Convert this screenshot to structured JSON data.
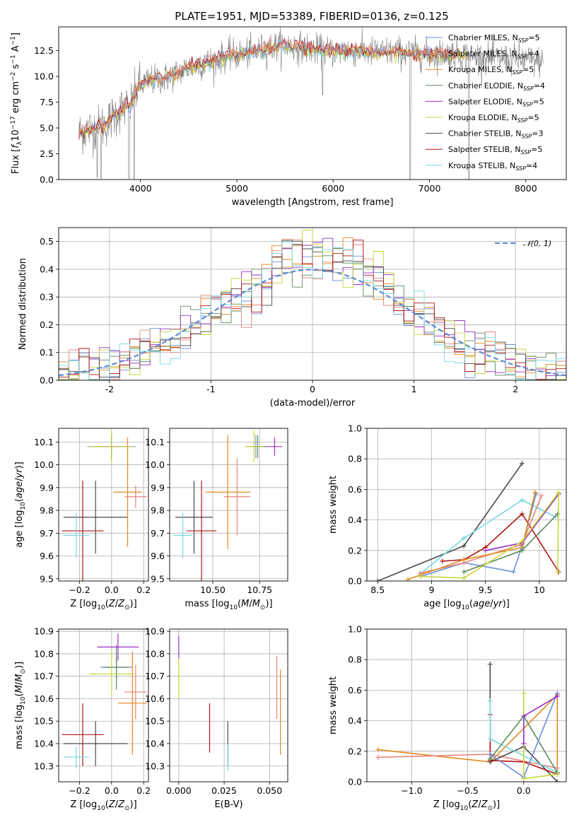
{
  "figure_title": "PLATE=1951, MJD=53389, FIBERID=0136, z=0.125",
  "legend_entries": [
    {
      "name": "Chabrier MILES, N$_{SSP}$=5",
      "label": "Chabrier MILES, N",
      "sub": "SSP",
      "rest": "=5",
      "color": "#6a8fd8"
    },
    {
      "name": "Salpeter MILES, N$_{SSP}$=4",
      "label": "Salpeter MILES, N",
      "sub": "SSP",
      "rest": "=4",
      "color": "#e9857d"
    },
    {
      "name": "Kroupa MILES, N$_{SSP}$=5",
      "label": "Kroupa MILES, N",
      "sub": "SSP",
      "rest": "=5",
      "color": "#e08a1e"
    },
    {
      "name": "Chabrier ELODIE, N$_{SSP}$=4",
      "label": "Chabrier ELODIE, N",
      "sub": "SSP",
      "rest": "=4",
      "color": "#5c8a5c"
    },
    {
      "name": "Salpeter ELODIE, N$_{SSP}$=5",
      "label": "Salpeter ELODIE, N",
      "sub": "SSP",
      "rest": "=5",
      "color": "#9b30c8"
    },
    {
      "name": "Kroupa ELODIE, N$_{SSP}$=5",
      "label": "Kroupa ELODIE, N",
      "sub": "SSP",
      "rest": "=5",
      "color": "#c9d63a"
    },
    {
      "name": "Chabrier STELIB, N$_{SSP}$=3",
      "label": "Chabrier STELIB, N",
      "sub": "SSP",
      "rest": "=3",
      "color": "#4a4a4a"
    },
    {
      "name": "Salpeter STELIB, N$_{SSP}$=5",
      "label": "Salpeter STELIB, N",
      "sub": "SSP",
      "rest": "=5",
      "color": "#b01515"
    },
    {
      "name": "Kroupa STELIB, N$_{SSP}$=4",
      "label": "Kroupa STELIB, N",
      "sub": "SSP",
      "rest": "=4",
      "color": "#78d8e0"
    }
  ],
  "chart_data": [
    {
      "id": "spectrum",
      "type": "line",
      "title": "PLATE=1951, MJD=53389, FIBERID=0136, z=0.125",
      "xlabel": "wavelength [Angstrom, rest frame]",
      "ylabel_text": "Flux [f",
      "ylabel_full": "Flux [f_λ 10^-17 erg cm^-2 s^-1 A^-1]",
      "xlim": [
        3150,
        8420
      ],
      "ylim": [
        0,
        14.8
      ],
      "xticks": [
        4000,
        5000,
        6000,
        7000,
        8000
      ],
      "yticks": [
        0.0,
        2.5,
        5.0,
        7.5,
        10.0,
        12.5
      ],
      "grid": false,
      "legend_position": "top-right",
      "continuum": [
        [
          3350,
          4.5
        ],
        [
          3450,
          4.8
        ],
        [
          3550,
          5.0
        ],
        [
          3650,
          5.4
        ],
        [
          3700,
          6.0
        ],
        [
          3800,
          6.8
        ],
        [
          3900,
          7.3
        ],
        [
          3980,
          9.1
        ],
        [
          4100,
          9.6
        ],
        [
          4250,
          9.8
        ],
        [
          4400,
          10.4
        ],
        [
          4500,
          10.9
        ],
        [
          4600,
          11.1
        ],
        [
          4750,
          11.5
        ],
        [
          4900,
          12.0
        ],
        [
          5000,
          12.1
        ],
        [
          5150,
          12.3
        ],
        [
          5300,
          12.7
        ],
        [
          5450,
          13.0
        ],
        [
          5600,
          12.9
        ],
        [
          5800,
          12.6
        ],
        [
          6000,
          12.4
        ],
        [
          6200,
          12.5
        ],
        [
          6400,
          12.3
        ],
        [
          6600,
          12.4
        ],
        [
          6800,
          12.3
        ],
        [
          7000,
          12.1
        ],
        [
          7200,
          12.2
        ],
        [
          7400,
          12.0
        ],
        [
          7600,
          11.8
        ],
        [
          7800,
          11.7
        ],
        [
          8000,
          11.6
        ],
        [
          8180,
          11.4
        ]
      ],
      "absorption_dips": [
        [
          3550,
          0.2
        ],
        [
          3590,
          0.1
        ],
        [
          3880,
          0.1
        ],
        [
          3935,
          0.0
        ],
        [
          5890,
          8.2
        ],
        [
          6800,
          0.0
        ],
        [
          7410,
          0.0
        ]
      ]
    },
    {
      "id": "residuals",
      "type": "histogram",
      "xlabel": "(data-model)/error",
      "ylabel": "Normed distribution",
      "xlim": [
        -2.5,
        2.5
      ],
      "ylim": [
        0,
        0.55
      ],
      "xticks": [
        -2,
        -1,
        0,
        1,
        2
      ],
      "yticks": [
        0.0,
        0.1,
        0.2,
        0.3,
        0.4,
        0.5
      ],
      "grid": true,
      "legend": {
        "label": "$\\mathcal{N}(0,1)$",
        "text": "𝒩(0, 1)",
        "position": "top-right",
        "style": "dashed",
        "color": "#5b8ad8"
      },
      "bin_edges_start": -2.5,
      "bin_width": 0.1,
      "reference_curve": "normal(0,1)"
    },
    {
      "id": "age_vs_Z",
      "type": "scatter",
      "xlabel": "Z [log$_{10}$(Z/Z$_\\odot$)]",
      "ylabel": "age [log$_{10}$(age/yr)]",
      "xlim": [
        -0.33,
        0.23
      ],
      "ylim": [
        9.49,
        10.16
      ],
      "xticks": [
        -0.2,
        0.0,
        0.2
      ],
      "xticklabels": [
        "−0.2",
        "0.0",
        "0.2"
      ],
      "yticks": [
        9.5,
        9.6,
        9.7,
        9.8,
        9.9,
        10.0,
        10.1
      ],
      "grid": true,
      "points": [
        {
          "c": 6,
          "x": -0.1,
          "y": 9.77,
          "xerr": 0.2,
          "yerr": 0.16
        },
        {
          "c": 7,
          "x": -0.18,
          "y": 9.71,
          "xerr": 0.13,
          "yerr": 0.22
        },
        {
          "c": 8,
          "x": -0.22,
          "y": 9.69,
          "xerr": 0.08,
          "yerr": 0.1
        },
        {
          "c": 0,
          "x": 0.0,
          "y": 10.08,
          "xerr": 0.15,
          "yerr": 0.06
        },
        {
          "c": 1,
          "x": 0.15,
          "y": 9.86,
          "xerr": 0.07,
          "yerr": 0.05
        },
        {
          "c": 2,
          "x": 0.1,
          "y": 9.88,
          "xerr": 0.09,
          "yerr": 0.24
        },
        {
          "c": 3,
          "x": 0.0,
          "y": 10.08,
          "xerr": 0.1,
          "yerr": 0.05
        },
        {
          "c": 4,
          "x": 0.0,
          "y": 10.08,
          "xerr": 0.05,
          "yerr": 0.05
        },
        {
          "c": 5,
          "x": 0.0,
          "y": 10.08,
          "xerr": 0.14,
          "yerr": 0.07
        }
      ]
    },
    {
      "id": "age_vs_mass",
      "type": "scatter",
      "xlabel": "mass [log$_{10}$(M/M$_\\odot$)]",
      "ylabel": "",
      "xlim": [
        10.27,
        10.9
      ],
      "ylim": [
        9.49,
        10.16
      ],
      "xticks": [
        10.25,
        10.5,
        10.75
      ],
      "xticklabels": [
        "10.25",
        "10.50",
        "10.75"
      ],
      "yticks": [
        9.5,
        9.6,
        9.7,
        9.8,
        9.9,
        10.0,
        10.1
      ],
      "grid": true,
      "points": [
        {
          "c": 6,
          "x": 10.4,
          "y": 9.77,
          "xerr": 0.1,
          "yerr": 0.16
        },
        {
          "c": 7,
          "x": 10.44,
          "y": 9.71,
          "xerr": 0.08,
          "yerr": 0.22
        },
        {
          "c": 8,
          "x": 10.34,
          "y": 9.69,
          "xerr": 0.05,
          "yerr": 0.1
        },
        {
          "c": 0,
          "x": 10.73,
          "y": 10.08,
          "xerr": 0.05,
          "yerr": 0.05
        },
        {
          "c": 1,
          "x": 10.63,
          "y": 9.86,
          "xerr": 0.07,
          "yerr": 0.17
        },
        {
          "c": 2,
          "x": 10.58,
          "y": 9.88,
          "xerr": 0.12,
          "yerr": 0.25
        },
        {
          "c": 3,
          "x": 10.74,
          "y": 10.08,
          "xerr": 0.05,
          "yerr": 0.05
        },
        {
          "c": 4,
          "x": 10.83,
          "y": 10.08,
          "xerr": 0.04,
          "yerr": 0.04
        },
        {
          "c": 5,
          "x": 10.72,
          "y": 10.08,
          "xerr": 0.05,
          "yerr": 0.07
        }
      ]
    },
    {
      "id": "mass_weight_vs_age",
      "type": "line",
      "xlabel": "age [log$_{10}$(age/yr)]",
      "ylabel": "mass weight",
      "xlim": [
        8.4,
        10.25
      ],
      "ylim": [
        0.0,
        1.0
      ],
      "xticks": [
        8.5,
        9.0,
        9.5,
        10.0
      ],
      "yticks": [
        0.0,
        0.2,
        0.4,
        0.6,
        0.8,
        1.0
      ],
      "grid": true,
      "series": [
        {
          "c": 6,
          "x": [
            8.5,
            9.3,
            9.84
          ],
          "y": [
            0.0,
            0.23,
            0.77
          ]
        },
        {
          "c": 8,
          "x": [
            8.9,
            9.3,
            9.84,
            10.15
          ],
          "y": [
            0.05,
            0.28,
            0.53,
            0.42
          ]
        },
        {
          "c": 7,
          "x": [
            9.1,
            9.3,
            9.5,
            9.84,
            10.18
          ],
          "y": [
            0.13,
            0.14,
            0.22,
            0.44,
            0.06
          ]
        },
        {
          "c": 0,
          "x": [
            8.9,
            9.3,
            9.76,
            9.84,
            9.97
          ],
          "y": [
            0.03,
            0.12,
            0.06,
            0.23,
            0.57
          ]
        },
        {
          "c": 1,
          "x": [
            8.89,
            9.3,
            9.84,
            10.02
          ],
          "y": [
            0.05,
            0.12,
            0.24,
            0.56
          ]
        },
        {
          "c": 2,
          "x": [
            8.78,
            9.3,
            9.84,
            9.96
          ],
          "y": [
            0.01,
            0.14,
            0.22,
            0.58
          ]
        },
        {
          "c": 3,
          "x": [
            9.3,
            9.84,
            10.17
          ],
          "y": [
            0.06,
            0.2,
            0.44
          ]
        },
        {
          "c": 4,
          "x": [
            9.5,
            9.84,
            10.18
          ],
          "y": [
            0.2,
            0.25,
            0.57
          ]
        },
        {
          "c": 5,
          "x": [
            8.9,
            9.3,
            9.84,
            10.18,
            10.17
          ],
          "y": [
            0.03,
            0.02,
            0.26,
            0.58,
            0.06
          ]
        }
      ]
    },
    {
      "id": "mass_vs_Z",
      "type": "scatter",
      "xlabel": "Z [log$_{10}$(Z/Z$_\\odot$)]",
      "ylabel": "mass [log$_{10}$(M/M$_\\odot$)]",
      "xlim": [
        -0.33,
        0.23
      ],
      "ylim": [
        10.23,
        10.91
      ],
      "xticks": [
        -0.2,
        0.0,
        0.2
      ],
      "xticklabels": [
        "−0.2",
        "0.0",
        "0.2"
      ],
      "yticks": [
        10.3,
        10.4,
        10.5,
        10.6,
        10.7,
        10.8,
        10.9
      ],
      "grid": true,
      "points": [
        {
          "c": 6,
          "x": -0.1,
          "y": 10.4,
          "xerr": 0.2,
          "yerr": 0.1
        },
        {
          "c": 7,
          "x": -0.18,
          "y": 10.44,
          "xerr": 0.13,
          "yerr": 0.14
        },
        {
          "c": 8,
          "x": -0.22,
          "y": 10.34,
          "xerr": 0.08,
          "yerr": 0.05
        },
        {
          "c": 0,
          "x": 0.03,
          "y": 10.74,
          "xerr": 0.1,
          "yerr": 0.06
        },
        {
          "c": 1,
          "x": 0.15,
          "y": 10.63,
          "xerr": 0.07,
          "yerr": 0.12
        },
        {
          "c": 2,
          "x": 0.13,
          "y": 10.58,
          "xerr": 0.09,
          "yerr": 0.23
        },
        {
          "c": 3,
          "x": 0.03,
          "y": 10.74,
          "xerr": 0.08,
          "yerr": 0.1
        },
        {
          "c": 4,
          "x": 0.04,
          "y": 10.83,
          "xerr": 0.13,
          "yerr": 0.06
        },
        {
          "c": 5,
          "x": 0.0,
          "y": 10.71,
          "xerr": 0.14,
          "yerr": 0.1
        }
      ]
    },
    {
      "id": "mass_vs_EBV",
      "type": "scatter",
      "xlabel": "E(B-V)",
      "ylabel": "",
      "xlim": [
        -0.005,
        0.06
      ],
      "ylim": [
        10.23,
        10.91
      ],
      "xticks": [
        0.0,
        0.025,
        0.05
      ],
      "xticklabels": [
        "0.000",
        "0.025",
        "0.050"
      ],
      "yticks": [
        10.3,
        10.4,
        10.5,
        10.6,
        10.7,
        10.8,
        10.9
      ],
      "grid": true,
      "points": [
        {
          "c": 7,
          "x": 0.017,
          "y": 10.47,
          "xerr": 0,
          "yerr": 0.11
        },
        {
          "c": 6,
          "x": 0.027,
          "y": 10.4,
          "xerr": 0,
          "yerr": 0.1
        },
        {
          "c": 8,
          "x": 0.027,
          "y": 10.34,
          "xerr": 0,
          "yerr": 0.06
        },
        {
          "c": 1,
          "x": 0.054,
          "y": 10.65,
          "xerr": 0,
          "yerr": 0.14
        },
        {
          "c": 2,
          "x": 0.056,
          "y": 10.54,
          "xerr": 0,
          "yerr": 0.19
        },
        {
          "c": 4,
          "x": 0.0,
          "y": 10.83,
          "xerr": 0,
          "yerr": 0.05
        },
        {
          "c": 5,
          "x": 0.0,
          "y": 10.69,
          "xerr": 0,
          "yerr": 0.09
        }
      ]
    },
    {
      "id": "mass_weight_vs_Z",
      "type": "line",
      "xlabel": "Z [log$_{10}$(Z/Z$_\\odot$)]",
      "ylabel": "mass weight",
      "xlim": [
        -1.4,
        0.38
      ],
      "ylim": [
        0.0,
        1.0
      ],
      "xticks": [
        -1.0,
        -0.5,
        0.0
      ],
      "xticklabels": [
        "−1.0",
        "−0.5",
        "0.0"
      ],
      "yticks": [
        0.0,
        0.2,
        0.4,
        0.6,
        0.8,
        1.0
      ],
      "grid": true,
      "series": [
        {
          "c": 2,
          "x": [
            -1.3,
            -0.3,
            0.3,
            0.3
          ],
          "y": [
            0.21,
            0.13,
            0.57,
            0.06
          ]
        },
        {
          "c": 1,
          "x": [
            -1.3,
            -0.3,
            0.3
          ],
          "y": [
            0.16,
            0.18,
            0.09
          ]
        },
        {
          "c": 6,
          "x": [
            -0.3,
            -0.3,
            0.0,
            0.3
          ],
          "y": [
            0.77,
            0.13,
            0.23,
            0.0
          ]
        },
        {
          "c": 7,
          "x": [
            -0.3,
            -0.3,
            0.0,
            0.3
          ],
          "y": [
            0.44,
            0.14,
            0.13,
            0.05
          ]
        },
        {
          "c": 8,
          "x": [
            -0.3,
            -0.3,
            0.3
          ],
          "y": [
            0.53,
            0.28,
            0.06
          ]
        },
        {
          "c": 3,
          "x": [
            -0.3,
            0.0,
            0.3
          ],
          "y": [
            0.15,
            0.43,
            0.06
          ]
        },
        {
          "c": 0,
          "x": [
            -0.3,
            0.0,
            0.3
          ],
          "y": [
            0.18,
            0.03,
            0.58
          ]
        },
        {
          "c": 5,
          "x": [
            0.0,
            0.0,
            0.3
          ],
          "y": [
            0.58,
            0.02,
            0.05
          ]
        },
        {
          "c": 4,
          "x": [
            0.0,
            0.0,
            0.3
          ],
          "y": [
            0.25,
            0.43,
            0.56
          ]
        }
      ]
    }
  ]
}
